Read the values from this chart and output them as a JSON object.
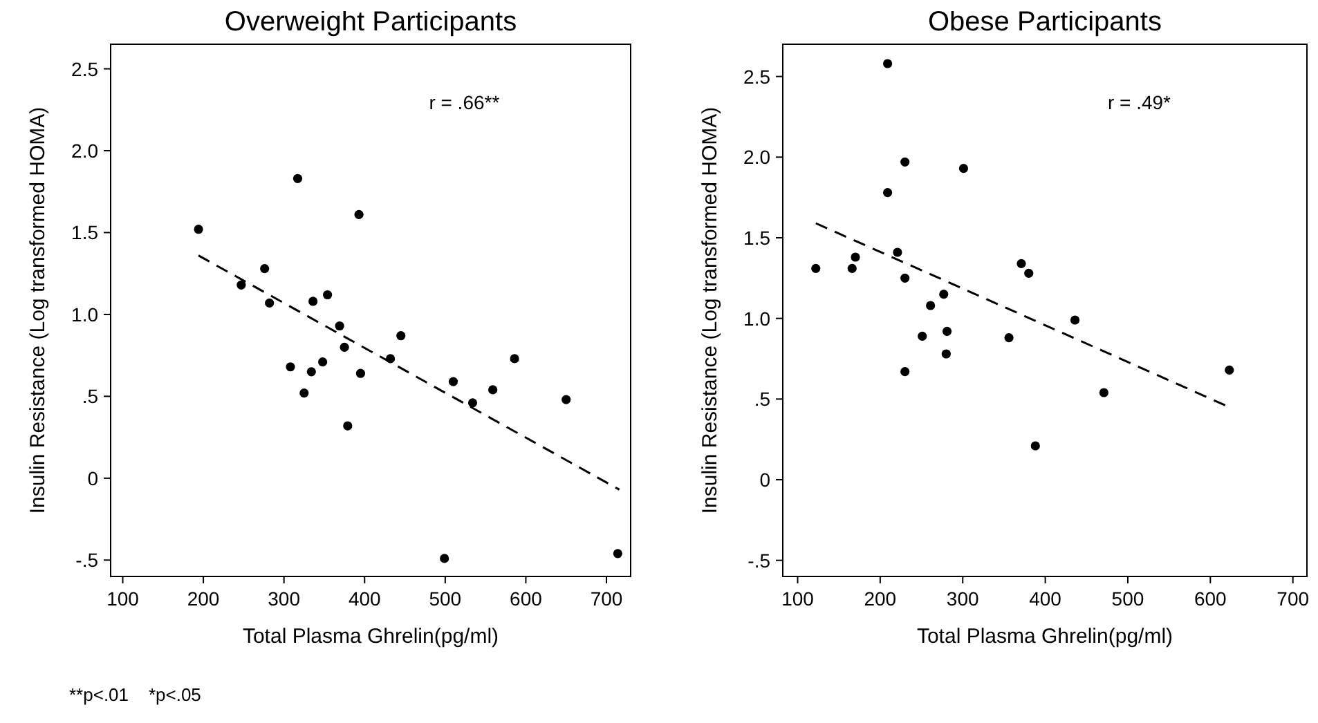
{
  "chart_data": [
    {
      "type": "scatter",
      "title": "Overweight Participants",
      "xlabel": "Total Plasma Ghrelin(pg/ml)",
      "ylabel": "Insulin Resistance (Log transformed HOMA)",
      "annotations": [
        "r = .66**",
        "**p<.01    *p<.05"
      ],
      "xlim": [
        85,
        730
      ],
      "ylim": [
        -0.6,
        2.65
      ],
      "xticks": [
        100,
        200,
        300,
        400,
        500,
        600,
        700
      ],
      "yticks": [
        {
          "value": -0.5,
          "label": "-.5"
        },
        0,
        {
          "value": 0.5,
          "label": ".5"
        },
        {
          "value": 1,
          "label": "1.0"
        },
        {
          "value": 1.5,
          "label": "1.5"
        },
        {
          "value": 2,
          "label": "2.0"
        },
        {
          "value": 2.5,
          "label": "2.5"
        }
      ],
      "grid": false,
      "marker": "circle",
      "series": [
        {
          "color": "#000000",
          "x": [
            194,
            247,
            276,
            282,
            308,
            317,
            325,
            334,
            336,
            348,
            354,
            369,
            375,
            379,
            393,
            395,
            432,
            445,
            499,
            510,
            534,
            559,
            586,
            650,
            714
          ],
          "values": [
            1.52,
            1.18,
            1.28,
            1.07,
            0.68,
            1.83,
            0.52,
            0.65,
            1.08,
            0.71,
            1.12,
            0.93,
            0.8,
            0.32,
            1.61,
            0.64,
            0.73,
            0.87,
            -0.49,
            0.59,
            0.46,
            0.54,
            0.73,
            0.48,
            -0.46
          ]
        },
        {
          "type": "line",
          "color": "#000000",
          "line_style": "dashed",
          "marker": "none",
          "x": [
            194,
            716
          ],
          "values": [
            1.36,
            -0.07
          ]
        }
      ]
    },
    {
      "type": "scatter",
      "title": "Obese Participants",
      "xlabel": "Total Plasma Ghrelin(pg/ml)",
      "ylabel": "Insulin Resistance (Log transformed HOMA)",
      "annotations": [
        "r = .49*"
      ],
      "xlim": [
        82,
        717
      ],
      "ylim": [
        -0.6,
        2.7
      ],
      "xticks": [
        100,
        200,
        300,
        400,
        500,
        600,
        700
      ],
      "yticks": [
        {
          "value": -0.5,
          "label": "-.5"
        },
        0,
        {
          "value": 0.5,
          "label": ".5"
        },
        {
          "value": 1,
          "label": "1.0"
        },
        {
          "value": 1.5,
          "label": "1.5"
        },
        {
          "value": 2,
          "label": "2.0"
        },
        {
          "value": 2.5,
          "label": "2.5"
        }
      ],
      "grid": false,
      "marker": "circle",
      "series": [
        {
          "color": "#000000",
          "x": [
            122,
            166,
            170,
            209,
            209,
            221,
            230,
            230,
            230,
            251,
            261,
            277,
            281,
            280,
            301,
            356,
            371,
            380,
            388,
            436,
            471,
            623
          ],
          "values": [
            1.31,
            1.31,
            1.38,
            2.58,
            1.78,
            1.41,
            1.25,
            1.97,
            0.67,
            0.89,
            1.08,
            1.15,
            0.92,
            0.78,
            1.93,
            0.88,
            1.34,
            1.28,
            0.21,
            0.99,
            0.54,
            0.68
          ]
        },
        {
          "type": "line",
          "color": "#000000",
          "line_style": "dashed",
          "marker": "none",
          "x": [
            122,
            623
          ],
          "values": [
            1.59,
            0.45
          ]
        }
      ]
    }
  ]
}
